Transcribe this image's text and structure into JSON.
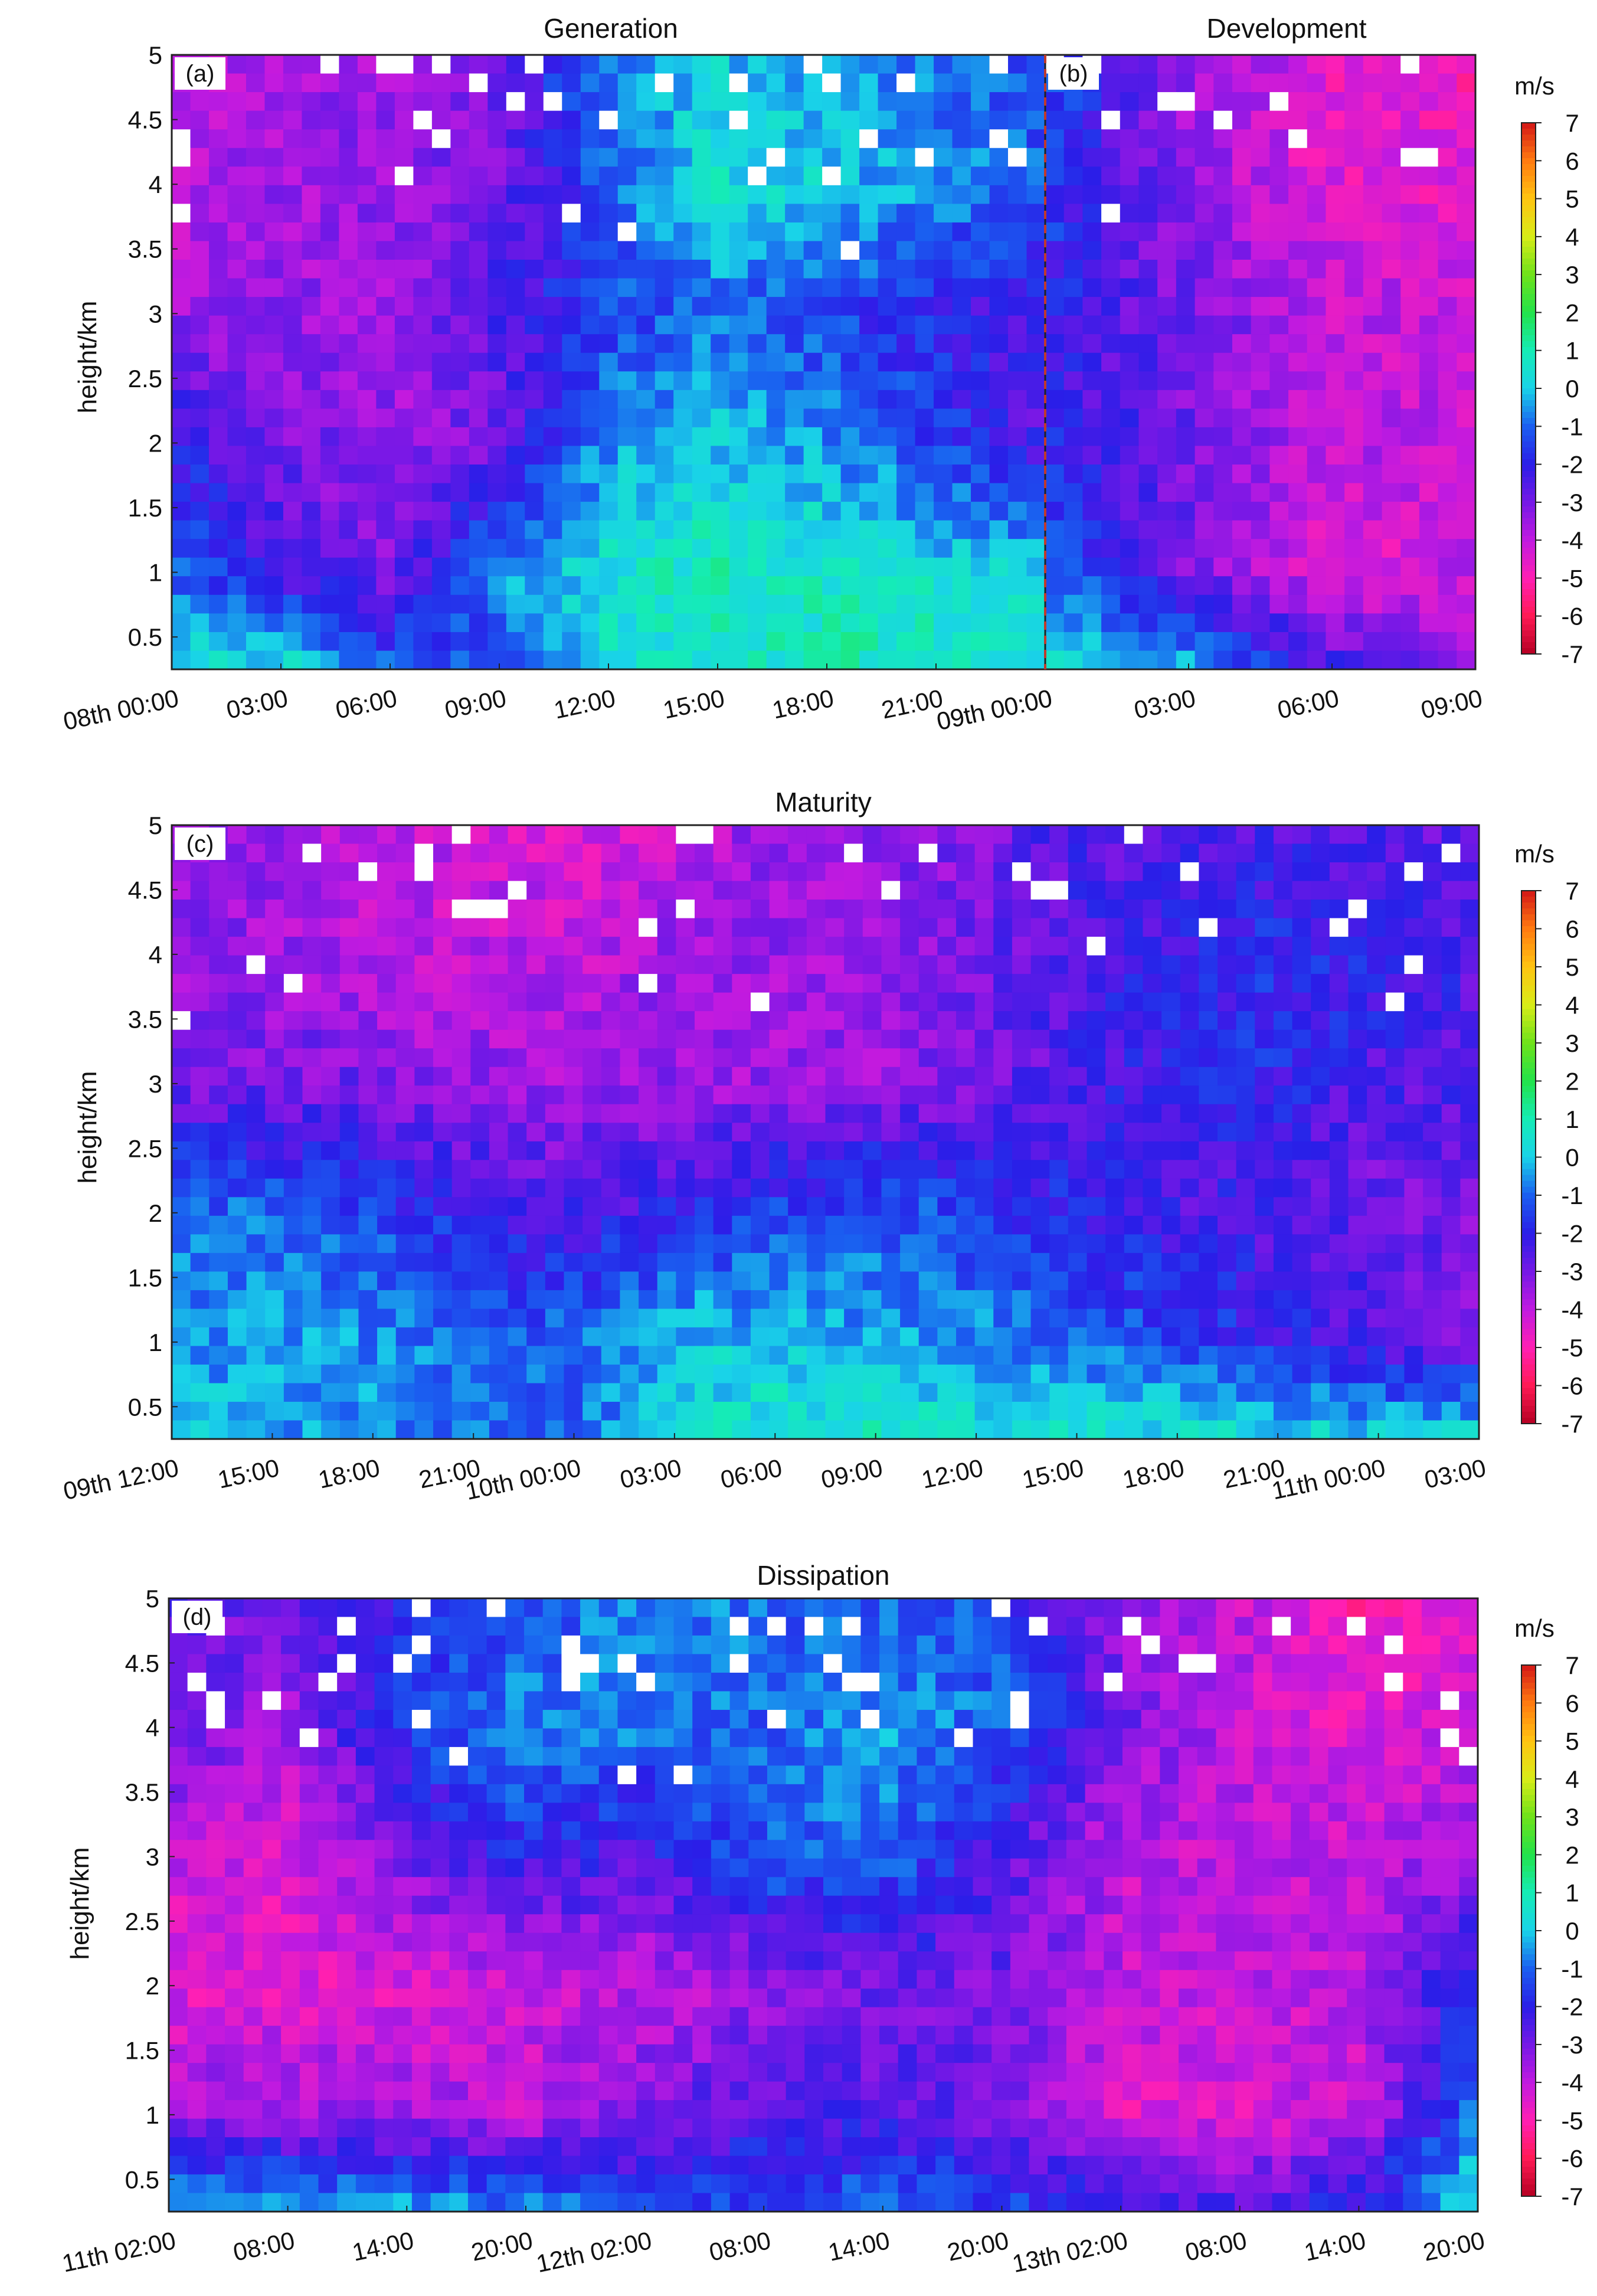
{
  "colorbar": {
    "unit": "m/s",
    "ticks": [
      7,
      6,
      5,
      4,
      3,
      2,
      1,
      0,
      -1,
      -2,
      -3,
      -4,
      -5,
      -6,
      -7
    ],
    "range": [
      -7,
      7
    ],
    "stops": [
      {
        "v": -7,
        "c": "#b50022"
      },
      {
        "v": -6,
        "c": "#ff1a55"
      },
      {
        "v": -5,
        "c": "#ff1fb4"
      },
      {
        "v": -4,
        "c": "#c01ae0"
      },
      {
        "v": -3,
        "c": "#7518e6"
      },
      {
        "v": -2,
        "c": "#2a1ee8"
      },
      {
        "v": -1,
        "c": "#1a5ff0"
      },
      {
        "v": 0,
        "c": "#19d3e8"
      },
      {
        "v": 1,
        "c": "#15ecb5"
      },
      {
        "v": 2,
        "c": "#22e24a"
      },
      {
        "v": 3,
        "c": "#6fe21a"
      },
      {
        "v": 4,
        "c": "#d8ec18"
      },
      {
        "v": 5,
        "c": "#ffc411"
      },
      {
        "v": 6,
        "c": "#ff7a10"
      },
      {
        "v": 7,
        "c": "#d41616"
      }
    ]
  },
  "chart_data": [
    {
      "type": "heatmap",
      "title": "Generation",
      "panel_label": "(a)",
      "ylabel": "height/km",
      "ylim": [
        0.25,
        5
      ],
      "yticks": [
        "5",
        "4.5",
        "4",
        "3.5",
        "3",
        "2.5",
        "2",
        "1.5",
        "1",
        "0.5"
      ],
      "xticks": [
        "08th 00:00",
        "03:00",
        "06:00",
        "09:00",
        "12:00",
        "15:00",
        "18:00",
        "21:00",
        "09th 00:00"
      ],
      "value_unit": "m/s",
      "pattern": [
        {
          "h": 0.3,
          "v": [
            0.5,
            0.3,
            -1.2,
            -1.5,
            0.3,
            0.6,
            0.9,
            0.9,
            0.6
          ]
        },
        {
          "h": 1.0,
          "v": [
            -1.0,
            -2.5,
            -3.0,
            -0.5,
            0.5,
            0.9,
            0.6,
            0.3,
            0.0
          ]
        },
        {
          "h": 2.0,
          "v": [
            -2.0,
            -3.0,
            -3.5,
            -3.0,
            -0.5,
            0.0,
            -0.5,
            -1.5,
            -2.5
          ]
        },
        {
          "h": 3.0,
          "v": [
            -3.5,
            -3.5,
            -3.5,
            -2.5,
            -1.5,
            -1.0,
            -1.5,
            -2.0,
            -2.5
          ]
        },
        {
          "h": 4.0,
          "v": [
            -4.0,
            -3.5,
            -3.5,
            -3.0,
            -1.0,
            0.5,
            0.0,
            -0.5,
            -1.0
          ]
        },
        {
          "h": 5.0,
          "v": [
            -4.0,
            -3.5,
            -3.5,
            -3.0,
            -0.5,
            0.0,
            -0.5,
            -1.0,
            -1.5
          ]
        }
      ]
    },
    {
      "type": "heatmap",
      "title": "Development",
      "panel_label": "(b)",
      "ylabel": "",
      "ylim": [
        0.25,
        5
      ],
      "yticks": [],
      "xticks": [
        "09th 00:00",
        "03:00",
        "06:00",
        "09:00"
      ],
      "value_unit": "m/s",
      "pattern": [
        {
          "h": 0.3,
          "v": [
            0.5,
            -0.5,
            -2.5,
            -3.5
          ]
        },
        {
          "h": 1.0,
          "v": [
            -1.0,
            -3.0,
            -4.5,
            -4.0
          ]
        },
        {
          "h": 2.0,
          "v": [
            -2.0,
            -3.0,
            -4.0,
            -4.0
          ]
        },
        {
          "h": 3.0,
          "v": [
            -2.0,
            -3.0,
            -4.0,
            -4.0
          ]
        },
        {
          "h": 4.0,
          "v": [
            -1.5,
            -3.5,
            -4.5,
            -4.5
          ]
        },
        {
          "h": 5.0,
          "v": [
            -1.0,
            -3.5,
            -4.5,
            -5.0
          ]
        }
      ]
    },
    {
      "type": "heatmap",
      "title": "Maturity",
      "panel_label": "(c)",
      "ylabel": "height/km",
      "ylim": [
        0.25,
        5
      ],
      "yticks": [
        "5",
        "4.5",
        "4",
        "3.5",
        "3",
        "2.5",
        "2",
        "1.5",
        "1",
        "0.5"
      ],
      "xticks": [
        "09th 12:00",
        "15:00",
        "18:00",
        "21:00",
        "10th 00:00",
        "03:00",
        "06:00",
        "09:00",
        "12:00",
        "15:00",
        "18:00",
        "21:00",
        "11th 00:00",
        "03:00"
      ],
      "value_unit": "m/s",
      "pattern": [
        {
          "h": 0.3,
          "v": [
            0.2,
            -0.5,
            -0.5,
            -1.0,
            -1.2,
            0.3,
            0.6,
            0.6,
            0.5,
            0.5,
            0.3,
            0.2,
            0.0,
            0.2
          ]
        },
        {
          "h": 1.0,
          "v": [
            -0.5,
            -0.5,
            -0.6,
            -1.0,
            -1.0,
            0.0,
            0.0,
            -0.5,
            -0.5,
            -1.0,
            -1.5,
            -2.0,
            -2.5,
            -3.0
          ]
        },
        {
          "h": 2.0,
          "v": [
            -1.0,
            -1.0,
            -1.5,
            -2.0,
            -2.5,
            -2.0,
            -1.5,
            -1.0,
            -1.5,
            -2.0,
            -2.5,
            -2.5,
            -3.0,
            -3.0
          ]
        },
        {
          "h": 3.0,
          "v": [
            -3.0,
            -3.0,
            -3.0,
            -3.5,
            -3.5,
            -3.5,
            -3.5,
            -3.5,
            -3.0,
            -2.5,
            -2.0,
            -2.0,
            -2.5,
            -2.5
          ]
        },
        {
          "h": 4.0,
          "v": [
            -3.5,
            -3.5,
            -4.0,
            -4.0,
            -4.0,
            -3.5,
            -3.5,
            -3.5,
            -3.0,
            -2.5,
            -2.0,
            -1.8,
            -2.0,
            -2.5
          ]
        },
        {
          "h": 5.0,
          "v": [
            -3.0,
            -3.5,
            -4.0,
            -4.0,
            -4.5,
            -4.0,
            -3.5,
            -3.5,
            -3.0,
            -2.5,
            -2.5,
            -2.5,
            -2.5,
            -3.0
          ]
        }
      ]
    },
    {
      "type": "heatmap",
      "title": "Dissipation",
      "panel_label": "(d)",
      "ylabel": "height/km",
      "ylim": [
        0.25,
        5
      ],
      "yticks": [
        "5",
        "4.5",
        "4",
        "3.5",
        "3",
        "2.5",
        "2",
        "1.5",
        "1",
        "0.5"
      ],
      "xticks": [
        "11th 02:00",
        "08:00",
        "14:00",
        "20:00",
        "12th 02:00",
        "08:00",
        "14:00",
        "20:00",
        "13th 02:00",
        "08:00",
        "14:00",
        "20:00"
      ],
      "value_unit": "m/s",
      "pattern": [
        {
          "h": 0.3,
          "v": [
            0.0,
            -0.5,
            -0.5,
            -0.8,
            -1.5,
            -1.5,
            -1.0,
            -1.5,
            -2.0,
            -2.5,
            -2.0,
            0.5
          ]
        },
        {
          "h": 1.0,
          "v": [
            -3.5,
            -3.5,
            -3.5,
            -4.0,
            -3.0,
            -2.5,
            -2.5,
            -3.0,
            -4.5,
            -4.5,
            -4.0,
            -1.0
          ]
        },
        {
          "h": 2.0,
          "v": [
            -4.5,
            -4.5,
            -4.5,
            -4.0,
            -4.0,
            -3.5,
            -3.0,
            -3.0,
            -4.0,
            -4.0,
            -4.0,
            -1.5
          ]
        },
        {
          "h": 3.0,
          "v": [
            -4.0,
            -4.5,
            -3.0,
            -2.0,
            -2.5,
            -1.0,
            -1.0,
            -2.5,
            -4.0,
            -4.0,
            -4.0,
            -3.5
          ]
        },
        {
          "h": 4.0,
          "v": [
            -3.0,
            -3.5,
            -1.5,
            -0.5,
            -0.8,
            -1.0,
            -0.5,
            -1.0,
            -3.0,
            -4.0,
            -4.5,
            -4.0
          ]
        },
        {
          "h": 5.0,
          "v": [
            -2.5,
            -3.0,
            -2.0,
            -1.5,
            -0.5,
            -1.0,
            -1.0,
            -1.5,
            -3.5,
            -4.0,
            -5.0,
            -4.5
          ]
        }
      ]
    }
  ]
}
